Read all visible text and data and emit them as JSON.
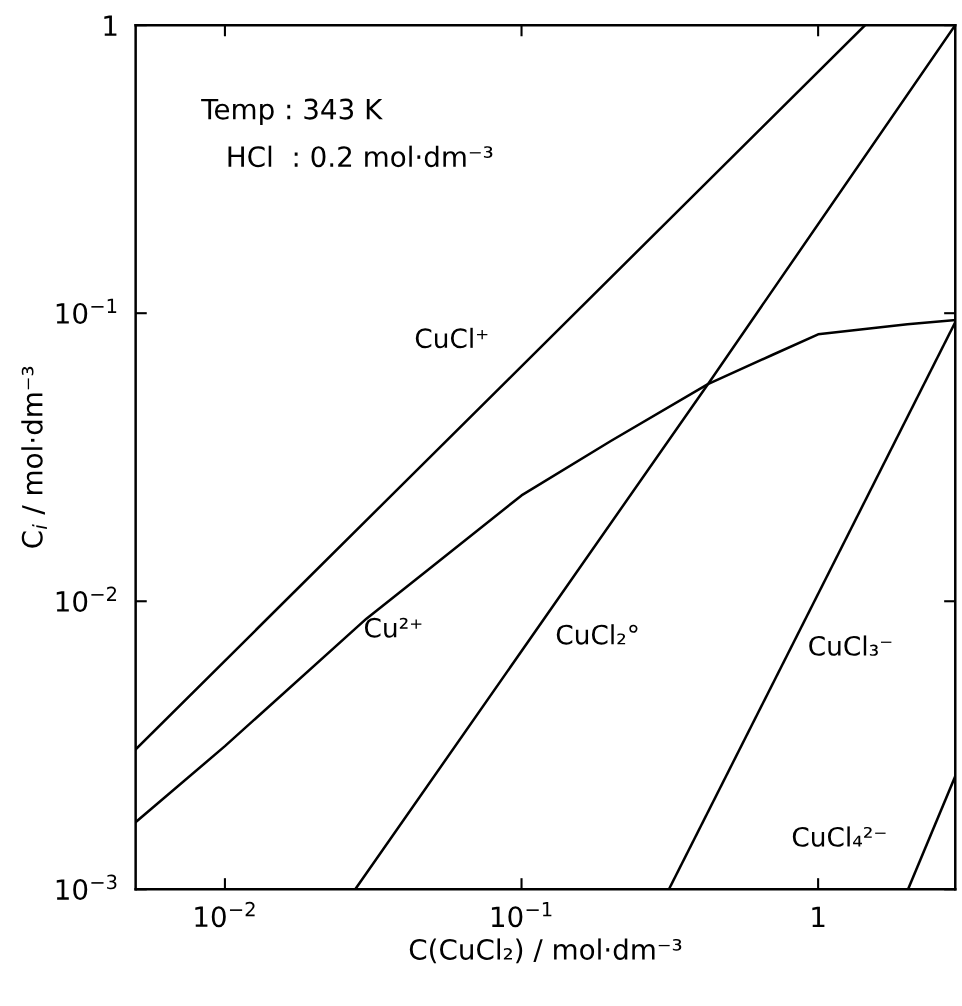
{
  "chart_data": {
    "type": "line",
    "xlabel": "C(CuCl₂) / mol·dm⁻³",
    "ylabel": "C$_{i}$ / mol·dm⁻³",
    "log": "xy",
    "xlim": [
      0.005,
      2.9
    ],
    "ylim": [
      0.001,
      1
    ],
    "xticks": [
      {
        "value": 0.01,
        "label": "10$^{−2}$"
      },
      {
        "value": 0.1,
        "label": "10$^{−1}$"
      },
      1
    ],
    "yticks": [
      {
        "value": 0.001,
        "label": "10$^{−3}$"
      },
      {
        "value": 0.01,
        "label": "10$^{−2}$"
      },
      {
        "value": 0.1,
        "label": "10$^{−1}$"
      },
      1
    ],
    "grid": false,
    "legend": false,
    "marker": "none",
    "line_style": "solid",
    "series": [
      {
        "name": "CuCl⁺",
        "color": "#000000",
        "x": [
          0.005,
          1.44
        ],
        "values": [
          0.00306,
          1
        ]
      },
      {
        "name": "Cu²⁺",
        "color": "#000000",
        "x": [
          0.005,
          0.01,
          0.03,
          0.05,
          0.1,
          0.2,
          0.425,
          0.7,
          1,
          2,
          2.9
        ],
        "values": [
          0.00171,
          0.00314,
          0.0087,
          0.0132,
          0.0233,
          0.036,
          0.0567,
          0.0716,
          0.0845,
          0.0916,
          0.0946
        ]
      },
      {
        "name": "CuCl₂°",
        "color": "#000000",
        "x": [
          0.0275,
          0.425,
          2.9
        ],
        "values": [
          0.001,
          0.0567,
          1
        ]
      },
      {
        "name": "CuCl₃⁻",
        "color": "#000000",
        "x": [
          0.314,
          2.9
        ],
        "values": [
          0.001,
          0.093
        ]
      },
      {
        "name": "CuCl₄²⁻",
        "color": "#000000",
        "x": [
          2.01,
          2.9
        ],
        "values": [
          0.001,
          0.00247
        ]
      }
    ],
    "annotations": [
      "Temp : 343 K",
      "HCl  : 0.2 mol·dm⁻³"
    ]
  }
}
